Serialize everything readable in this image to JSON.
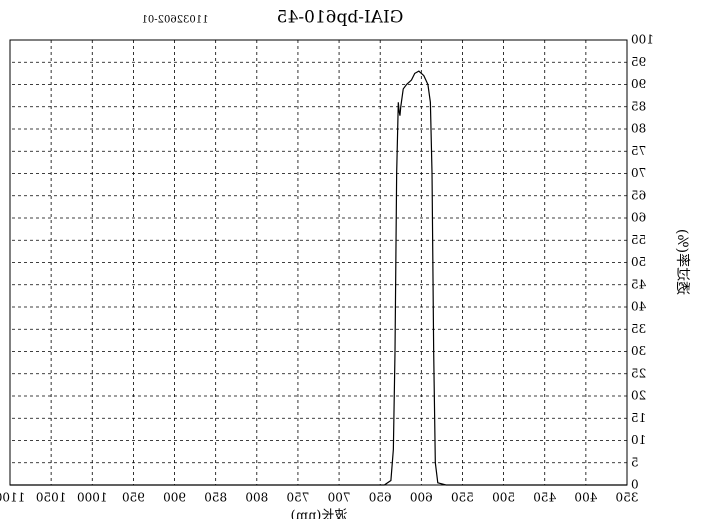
{
  "chart_data": {
    "type": "line",
    "title": "GIAI-bp610-45",
    "subtitle": "11032602-01",
    "x_label": "波长(nm)",
    "y_label": "透过率(%)",
    "x": [
      350,
      560,
      570,
      580,
      583,
      585,
      587,
      589,
      592,
      597,
      603,
      608,
      612,
      618,
      622,
      625,
      626,
      627,
      628,
      630,
      632,
      634,
      637,
      645,
      1100
    ],
    "series": [
      {
        "name": "GIAI-bp610-45",
        "color": "#000000",
        "values": [
          0,
          0,
          0,
          0.5,
          5,
          30,
          70,
          86,
          90,
          92,
          93,
          92.5,
          91,
          90,
          89,
          85,
          83,
          84,
          86,
          70,
          30,
          8,
          1,
          0,
          0
        ]
      }
    ],
    "xlim": [
      350,
      1100
    ],
    "xticks": [
      350,
      400,
      450,
      500,
      550,
      600,
      650,
      700,
      750,
      800,
      850,
      900,
      950,
      1000,
      1050,
      1100
    ],
    "ylim": [
      0,
      100
    ],
    "yticks": [
      0,
      5,
      10,
      15,
      20,
      25,
      30,
      35,
      40,
      45,
      50,
      55,
      60,
      65,
      70,
      75,
      80,
      85,
      90,
      95,
      100
    ],
    "grid": true,
    "mirrored": true
  }
}
